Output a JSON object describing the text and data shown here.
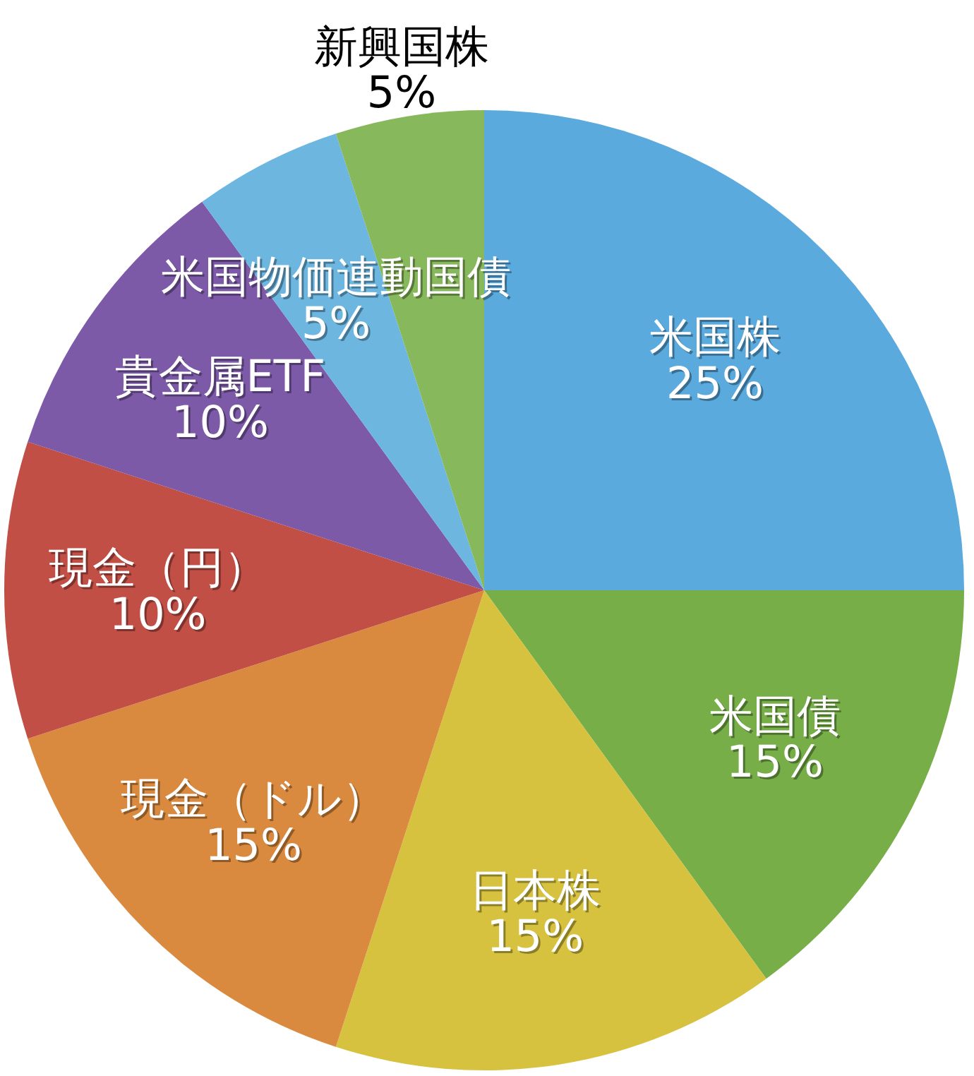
{
  "chart_data": {
    "type": "pie",
    "categories": [
      "米国株",
      "米国債",
      "日本株",
      "現金（ドル）",
      "現金（円）",
      "貴金属ETF",
      "米国物価連動国債",
      "新興国株"
    ],
    "values": [
      25,
      15,
      15,
      15,
      10,
      10,
      5,
      5
    ],
    "colors": [
      "#5aaade",
      "#77ae48",
      "#d6c23e",
      "#d98a3e",
      "#c14f45",
      "#7d5aa8",
      "#6cb6e0",
      "#88b85c"
    ],
    "value_labels": [
      "25%",
      "15%",
      "15%",
      "15%",
      "10%",
      "10%",
      "5%",
      "5%"
    ]
  }
}
